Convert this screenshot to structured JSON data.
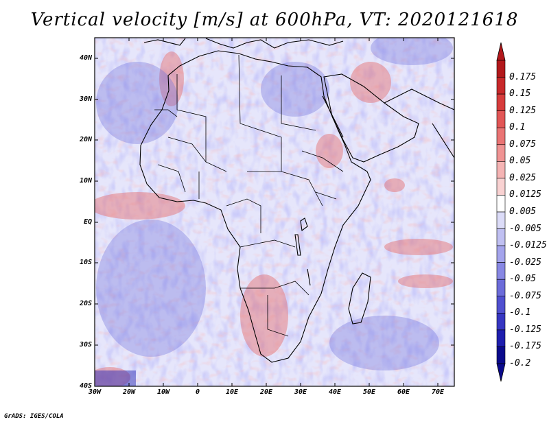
{
  "title": "Vertical velocity [m/s] at 600hPa, VT: 2020121618",
  "credit": "GrADS: IGES/COLA",
  "map": {
    "variable": "Vertical velocity",
    "units": "m/s",
    "level": "600hPa",
    "valid_time": "2020121618",
    "lon_range": [
      -30,
      75
    ],
    "lat_range": [
      -40,
      45
    ],
    "lat_labels": [
      "40N",
      "30N",
      "20N",
      "10N",
      "EQ",
      "10S",
      "20S",
      "30S",
      "40S"
    ],
    "lon_labels": [
      "30W",
      "20W",
      "10W",
      "0",
      "10E",
      "20E",
      "30E",
      "40E",
      "50E",
      "60E",
      "70E"
    ]
  },
  "colorbar": {
    "labels": [
      "0.175",
      "0.15",
      "0.125",
      "0.1",
      "0.075",
      "0.05",
      "0.025",
      "0.0125",
      "0.005",
      "-0.005",
      "-0.0125",
      "-0.025",
      "-0.05",
      "-0.075",
      "-0.1",
      "-0.125",
      "-0.175",
      "-0.2"
    ],
    "colors": [
      "#b2181b",
      "#c8282a",
      "#d73c3c",
      "#e25656",
      "#ea7474",
      "#f09494",
      "#f5b4b4",
      "#f9d2d2",
      "#ffffff",
      "#dcdcf8",
      "#c0c0f2",
      "#a4a4ec",
      "#8888e4",
      "#6c6cda",
      "#5050d0",
      "#3636c2",
      "#1e1eae",
      "#0a0a8c"
    ]
  }
}
